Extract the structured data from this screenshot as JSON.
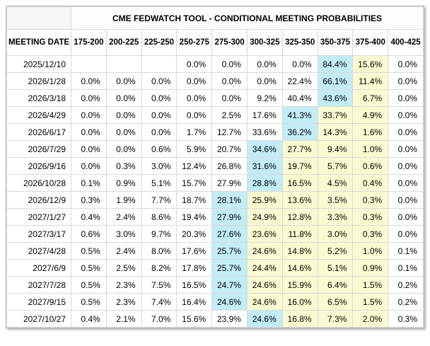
{
  "colors": {
    "highlight_blue": "#c2ecf6",
    "highlight_yellow": "#fafad2",
    "border_inner": "#d9d9d9",
    "border_outer": "#b7b7b7"
  },
  "chart_data": {
    "type": "table",
    "title": "CME FEDWATCH TOOL - CONDITIONAL MEETING PROBABILITIES",
    "columns": [
      "MEETING DATE",
      "175-200",
      "200-225",
      "225-250",
      "250-275",
      "275-300",
      "300-325",
      "325-350",
      "350-375",
      "375-400",
      "400-425"
    ],
    "rows": [
      {
        "date": "2025/12/10",
        "values": [
          "",
          "",
          "",
          "0.0%",
          "0.0%",
          "0.0%",
          "0.0%",
          "84.4%",
          "15.6%",
          "0.0%"
        ],
        "highlights": [
          "",
          "",
          "",
          "",
          "",
          "",
          "",
          "blue",
          "yellow",
          ""
        ]
      },
      {
        "date": "2026/1/28",
        "values": [
          "0.0%",
          "0.0%",
          "0.0%",
          "0.0%",
          "0.0%",
          "0.0%",
          "22.4%",
          "66.1%",
          "11.4%",
          "0.0%"
        ],
        "highlights": [
          "",
          "",
          "",
          "",
          "",
          "",
          "",
          "blue",
          "yellow",
          ""
        ]
      },
      {
        "date": "2026/3/18",
        "values": [
          "0.0%",
          "0.0%",
          "0.0%",
          "0.0%",
          "0.0%",
          "9.2%",
          "40.4%",
          "43.6%",
          "6.7%",
          "0.0%"
        ],
        "highlights": [
          "",
          "",
          "",
          "",
          "",
          "",
          "",
          "blue",
          "yellow",
          ""
        ]
      },
      {
        "date": "2026/4/29",
        "values": [
          "0.0%",
          "0.0%",
          "0.0%",
          "0.0%",
          "2.5%",
          "17.6%",
          "41.3%",
          "33.7%",
          "4.9%",
          "0.0%"
        ],
        "highlights": [
          "",
          "",
          "",
          "",
          "",
          "",
          "blue",
          "yellow",
          "yellow",
          ""
        ]
      },
      {
        "date": "2026/6/17",
        "values": [
          "0.0%",
          "0.0%",
          "0.0%",
          "1.7%",
          "12.7%",
          "33.6%",
          "36.2%",
          "14.3%",
          "1.6%",
          "0.0%"
        ],
        "highlights": [
          "",
          "",
          "",
          "",
          "",
          "",
          "blue",
          "yellow",
          "yellow",
          ""
        ]
      },
      {
        "date": "2026/7/29",
        "values": [
          "0.0%",
          "0.0%",
          "0.6%",
          "5.9%",
          "20.7%",
          "34.6%",
          "27.7%",
          "9.4%",
          "1.0%",
          "0.0%"
        ],
        "highlights": [
          "",
          "",
          "",
          "",
          "",
          "blue",
          "yellow",
          "yellow",
          "yellow",
          ""
        ]
      },
      {
        "date": "2026/9/16",
        "values": [
          "0.0%",
          "0.3%",
          "3.0%",
          "12.4%",
          "26.8%",
          "31.6%",
          "19.7%",
          "5.7%",
          "0.6%",
          "0.0%"
        ],
        "highlights": [
          "",
          "",
          "",
          "",
          "",
          "blue",
          "yellow",
          "yellow",
          "yellow",
          ""
        ]
      },
      {
        "date": "2026/10/28",
        "values": [
          "0.1%",
          "0.9%",
          "5.1%",
          "15.7%",
          "27.9%",
          "28.8%",
          "16.5%",
          "4.5%",
          "0.4%",
          "0.0%"
        ],
        "highlights": [
          "",
          "",
          "",
          "",
          "",
          "blue",
          "yellow",
          "yellow",
          "yellow",
          ""
        ]
      },
      {
        "date": "2026/12/9",
        "values": [
          "0.3%",
          "1.9%",
          "7.7%",
          "18.7%",
          "28.1%",
          "25.9%",
          "13.6%",
          "3.5%",
          "0.3%",
          "0.0%"
        ],
        "highlights": [
          "",
          "",
          "",
          "",
          "blue",
          "yellow",
          "yellow",
          "yellow",
          "yellow",
          ""
        ]
      },
      {
        "date": "2027/1/27",
        "values": [
          "0.4%",
          "2.4%",
          "8.6%",
          "19.4%",
          "27.9%",
          "24.9%",
          "12.8%",
          "3.3%",
          "0.3%",
          "0.0%"
        ],
        "highlights": [
          "",
          "",
          "",
          "",
          "blue",
          "yellow",
          "yellow",
          "yellow",
          "yellow",
          ""
        ]
      },
      {
        "date": "2027/3/17",
        "values": [
          "0.6%",
          "3.0%",
          "9.7%",
          "20.3%",
          "27.6%",
          "23.6%",
          "11.8%",
          "3.0%",
          "0.3%",
          "0.0%"
        ],
        "highlights": [
          "",
          "",
          "",
          "",
          "blue",
          "yellow",
          "yellow",
          "yellow",
          "yellow",
          ""
        ]
      },
      {
        "date": "2027/4/28",
        "values": [
          "0.5%",
          "2.4%",
          "8.0%",
          "17.6%",
          "25.7%",
          "24.6%",
          "14.8%",
          "5.2%",
          "1.0%",
          "0.1%"
        ],
        "highlights": [
          "",
          "",
          "",
          "",
          "blue",
          "yellow",
          "yellow",
          "yellow",
          "yellow",
          ""
        ]
      },
      {
        "date": "2027/6/9",
        "values": [
          "0.5%",
          "2.5%",
          "8.2%",
          "17.8%",
          "25.7%",
          "24.4%",
          "14.6%",
          "5.1%",
          "0.9%",
          "0.1%"
        ],
        "highlights": [
          "",
          "",
          "",
          "",
          "blue",
          "yellow",
          "yellow",
          "yellow",
          "yellow",
          ""
        ]
      },
      {
        "date": "2027/7/28",
        "values": [
          "0.5%",
          "2.3%",
          "7.5%",
          "16.5%",
          "24.7%",
          "24.6%",
          "15.9%",
          "6.4%",
          "1.5%",
          "0.2%"
        ],
        "highlights": [
          "",
          "",
          "",
          "",
          "blue",
          "yellow",
          "yellow",
          "yellow",
          "yellow",
          ""
        ]
      },
      {
        "date": "2027/9/15",
        "values": [
          "0.5%",
          "2.3%",
          "7.4%",
          "16.4%",
          "24.6%",
          "24.6%",
          "16.0%",
          "6.5%",
          "1.5%",
          "0.2%"
        ],
        "highlights": [
          "",
          "",
          "",
          "",
          "blue",
          "yellow",
          "yellow",
          "yellow",
          "yellow",
          ""
        ]
      },
      {
        "date": "2027/10/27",
        "values": [
          "0.4%",
          "2.1%",
          "7.0%",
          "15.6%",
          "23.9%",
          "24.6%",
          "16.8%",
          "7.3%",
          "2.0%",
          "0.3%"
        ],
        "highlights": [
          "",
          "",
          "",
          "",
          "",
          "blue",
          "yellow",
          "yellow",
          "yellow",
          ""
        ]
      }
    ]
  }
}
